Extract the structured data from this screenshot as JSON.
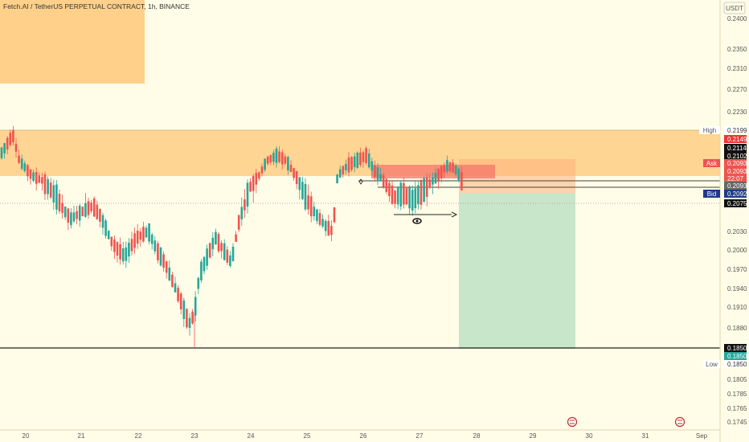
{
  "header": {
    "title": "Fetch.AI / TetherUS PERPETUAL CONTRACT, 1h, BINANCE",
    "currency": "USDT"
  },
  "chart_data": {
    "type": "candlestick",
    "ylim": [
      0.174,
      0.242
    ],
    "y_ticks": [
      "0.2400",
      "0.2350",
      "0.2310",
      "0.2270",
      "0.2230",
      "0.2030",
      "0.2000",
      "0.1970",
      "0.1940",
      "0.1910",
      "0.1880",
      "0.1805",
      "0.1785",
      "0.1765",
      "0.1745"
    ],
    "x_ticks": [
      "20",
      "21",
      "22",
      "23",
      "24",
      "25",
      "26",
      "27",
      "28",
      "29",
      "30",
      "31",
      "Sep"
    ],
    "price_labels": [
      {
        "tag": "High",
        "value": "0.2199",
        "color": "#ffffff",
        "text": "#333333"
      },
      {
        "tag": "",
        "value": "0.2149",
        "color": "#e53935",
        "text": "#ffffff"
      },
      {
        "tag": "",
        "value": "0.2114",
        "color": "#111111",
        "text": "#ffffff"
      },
      {
        "tag": "",
        "value": "0.2102",
        "color": "#111111",
        "text": "#ffffff"
      },
      {
        "tag": "Ask",
        "value": "0.2093",
        "color": "#ef5350",
        "text": "#ffffff"
      },
      {
        "tag": "",
        "value": "0.2093",
        "color": "#ef5350",
        "text": "#ffffff"
      },
      {
        "tag": "",
        "value": "22:07",
        "color": "#ef5350",
        "text": "#ffffff"
      },
      {
        "tag": "",
        "value": "0.2093",
        "color": "#666666",
        "text": "#ffffff"
      },
      {
        "tag": "Bid",
        "value": "0.2092",
        "color": "#1e3a8a",
        "text": "#ffffff"
      },
      {
        "tag": "",
        "value": "0.2075",
        "color": "#111111",
        "text": "#ffffff"
      },
      {
        "tag": "",
        "value": "0.1850",
        "color": "#111111",
        "text": "#ffffff"
      },
      {
        "tag": "",
        "value": "0.1850",
        "color": "#26a69a",
        "text": "#ffffff"
      },
      {
        "tag": "Low",
        "value": "0.1850",
        "color": "#ffffff",
        "text": "#333333"
      }
    ],
    "zones": {
      "supply_zone": {
        "from": 0.2145,
        "to": 0.2199,
        "color": "#ffd08a"
      },
      "upper_zone": {
        "from": 0.228,
        "to": 0.242,
        "color": "#ffd08a"
      }
    },
    "position": {
      "entry": 0.2093,
      "stop": 0.212,
      "target": 0.185,
      "profit_color": "#c8e6c9",
      "loss_color": "#ffccbc"
    },
    "colors": {
      "up": "#26a69a",
      "down": "#ef5350",
      "accent": "#ff9800"
    }
  }
}
